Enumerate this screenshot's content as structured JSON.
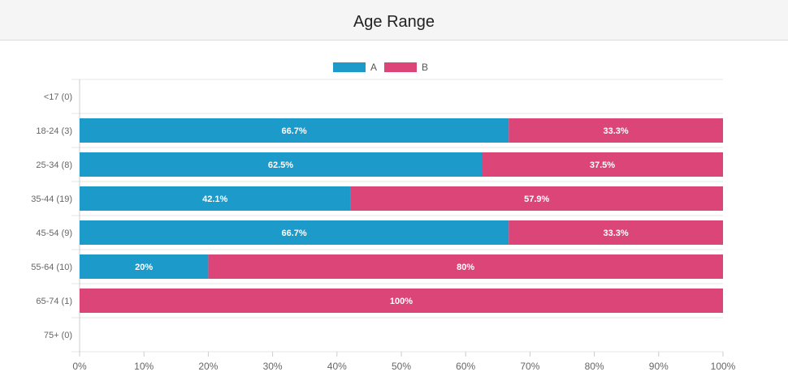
{
  "header": {
    "title": "Age Range"
  },
  "colors": {
    "A": "#1c9ac9",
    "B": "#dc4578",
    "grid": "#e6e6e6",
    "axis": "#cccccc",
    "tick_text": "#666666",
    "bar_label": "#ffffff"
  },
  "chart_data": {
    "type": "bar",
    "orientation": "horizontal",
    "stacked": true,
    "title": "",
    "xlabel": "",
    "ylabel": "",
    "xlim": [
      0,
      100
    ],
    "x_ticks": [
      "0%",
      "10%",
      "20%",
      "30%",
      "40%",
      "50%",
      "60%",
      "70%",
      "80%",
      "90%",
      "100%"
    ],
    "legend_position": "top-center",
    "categories": [
      "<17 (0)",
      "18-24 (3)",
      "25-34 (8)",
      "35-44 (19)",
      "45-54 (9)",
      "55-64 (10)",
      "65-74 (1)",
      "75+ (0)"
    ],
    "series": [
      {
        "name": "A",
        "color": "#1c9ac9",
        "values": [
          0,
          66.7,
          62.5,
          42.1,
          66.7,
          20,
          0,
          0
        ],
        "labels": [
          "",
          "66.7%",
          "62.5%",
          "42.1%",
          "66.7%",
          "20%",
          "",
          ""
        ]
      },
      {
        "name": "B",
        "color": "#dc4578",
        "values": [
          0,
          33.3,
          37.5,
          57.9,
          33.3,
          80,
          100,
          0
        ],
        "labels": [
          "",
          "33.3%",
          "37.5%",
          "57.9%",
          "33.3%",
          "80%",
          "100%",
          ""
        ]
      }
    ]
  }
}
